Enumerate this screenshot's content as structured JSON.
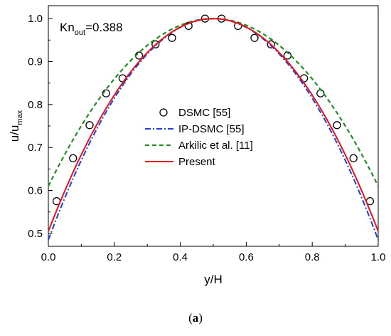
{
  "chart_data": {
    "type": "line",
    "annotation": {
      "main": "Kn",
      "sub": "out",
      "rest": "=0.388"
    },
    "xlabel": "y/H",
    "ylabel": {
      "main": "u/u",
      "sub": "max"
    },
    "xlim": [
      0.0,
      1.0
    ],
    "ylim": [
      0.47,
      1.03
    ],
    "xticks": [
      "0.0",
      "0.2",
      "0.4",
      "0.6",
      "0.8",
      "1.0"
    ],
    "yticks": [
      "0.5",
      "0.6",
      "0.7",
      "0.8",
      "0.9",
      "1.0"
    ],
    "legend_position": "center",
    "series": [
      {
        "name": "DSMC [55]",
        "kind": "markers",
        "color": "#000000",
        "x": [
          0.025,
          0.075,
          0.125,
          0.175,
          0.225,
          0.275,
          0.325,
          0.375,
          0.425,
          0.475,
          0.525,
          0.575,
          0.625,
          0.675,
          0.725,
          0.775,
          0.825,
          0.875,
          0.925,
          0.975
        ],
        "y": [
          0.575,
          0.675,
          0.752,
          0.826,
          0.861,
          0.914,
          0.94,
          0.955,
          0.983,
          1.0,
          1.0,
          0.983,
          0.955,
          0.94,
          0.914,
          0.861,
          0.826,
          0.752,
          0.675,
          0.575
        ]
      },
      {
        "name": "IP-DSMC [55]",
        "kind": "dashdot",
        "color": "#1c3fd8",
        "y_wall": 0.485,
        "y_center": 1.0
      },
      {
        "name": "Arkilic et al. [11]",
        "kind": "dash",
        "color": "#1f8f1f",
        "y_wall": 0.61,
        "y_center": 1.0
      },
      {
        "name": "Present",
        "kind": "solid",
        "color": "#e8101a",
        "y_wall": 0.505,
        "y_center": 1.0
      }
    ]
  },
  "caption": "(a)"
}
